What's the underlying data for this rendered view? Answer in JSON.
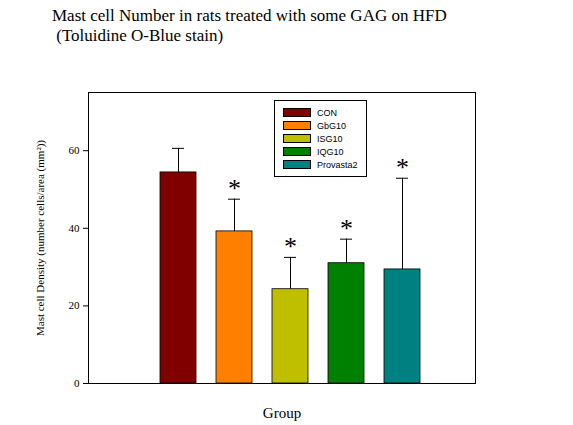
{
  "chart_data": {
    "type": "bar",
    "title": "Mast cell Number in rats treated with some GAG on HFD\n (Toluidine O-Blue stain)",
    "x_label": "Group",
    "y_label": "Mast cell Density (number cells/area (mm²))",
    "categories": [
      "CON",
      "GbG10",
      "ISG10",
      "IQG10",
      "Provasta2"
    ],
    "values": [
      54.4,
      39.2,
      24.3,
      31.0,
      29.4
    ],
    "errors": [
      6.2,
      8.3,
      8.2,
      6.2,
      23.5
    ],
    "colors": [
      "#800000",
      "#ff8000",
      "#bfbf00",
      "#008000",
      "#008080"
    ],
    "annotations": [
      {
        "text": "*",
        "category": "GbG10"
      },
      {
        "text": "*",
        "category": "ISG10"
      },
      {
        "text": "*",
        "category": "IQG10"
      },
      {
        "text": "*",
        "category": "Provasta2"
      }
    ],
    "ylim": [
      0,
      75
    ],
    "yticks": [
      0,
      20,
      40,
      60
    ],
    "legend": "top",
    "tick_labels": "y",
    "grid": false
  }
}
